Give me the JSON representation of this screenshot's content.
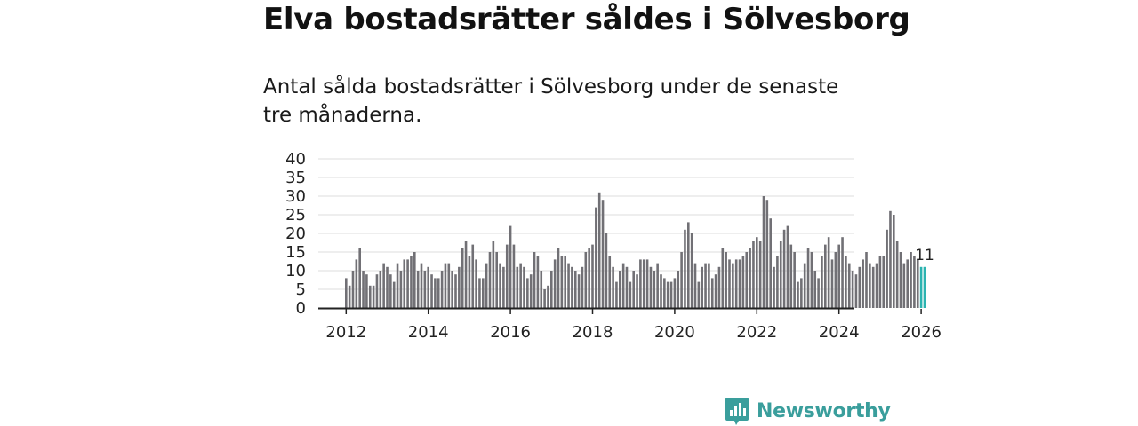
{
  "title": "Elva bostadsrätter såldes i Sölvesborg",
  "subtitle": "Antal sålda bostadsrätter i Sölvesborg under de senaste tre månaderna.",
  "brand": {
    "name": "Newsworthy",
    "logo_icon": "bar-chart-speech-bubble-icon"
  },
  "colors": {
    "bar": "#717075",
    "highlight": "#2bb3b0",
    "grid": "#dcdcdc",
    "axis": "#222222",
    "brand": "#3a9e9c"
  },
  "chart_data": {
    "type": "bar",
    "title": "Elva bostadsrätter såldes i Sölvesborg",
    "xlabel": "",
    "ylabel": "",
    "ylim": [
      0,
      40
    ],
    "yticks": [
      "0",
      "5",
      "10",
      "15",
      "20",
      "25",
      "30",
      "35",
      "40"
    ],
    "xticks": [
      "2012",
      "2014",
      "2016",
      "2018",
      "2020",
      "2022",
      "2024",
      "2026"
    ],
    "grid": true,
    "start_month": "2012-01",
    "values": [
      8,
      6,
      10,
      13,
      16,
      10,
      9,
      6,
      6,
      9,
      10,
      12,
      11,
      9,
      7,
      12,
      10,
      13,
      13,
      14,
      15,
      10,
      12,
      10,
      11,
      9,
      8,
      8,
      10,
      12,
      12,
      10,
      9,
      11,
      16,
      18,
      14,
      17,
      13,
      8,
      8,
      12,
      15,
      18,
      15,
      12,
      11,
      17,
      22,
      17,
      11,
      12,
      11,
      8,
      9,
      15,
      14,
      10,
      5,
      6,
      10,
      13,
      16,
      14,
      14,
      12,
      11,
      10,
      9,
      11,
      15,
      16,
      17,
      27,
      31,
      29,
      20,
      14,
      11,
      7,
      10,
      12,
      11,
      7,
      10,
      9,
      13,
      13,
      13,
      11,
      10,
      12,
      9,
      8,
      7,
      7,
      8,
      10,
      15,
      21,
      23,
      20,
      12,
      7,
      11,
      12,
      12,
      8,
      9,
      11,
      16,
      15,
      13,
      12,
      13,
      13,
      14,
      15,
      16,
      18,
      19,
      18,
      30,
      29,
      24,
      11,
      14,
      18,
      21,
      22,
      17,
      15,
      7,
      8,
      12,
      16,
      15,
      10,
      8,
      14,
      17,
      19,
      13,
      15,
      17,
      19,
      14,
      12,
      10,
      9,
      11,
      13,
      15,
      12,
      11,
      12,
      14,
      14,
      21,
      26,
      25,
      18,
      15,
      12,
      13,
      15,
      14,
      13,
      11,
      11
    ],
    "highlight_from_index": 168,
    "annotation": {
      "text": "11",
      "target": "last bar"
    }
  }
}
